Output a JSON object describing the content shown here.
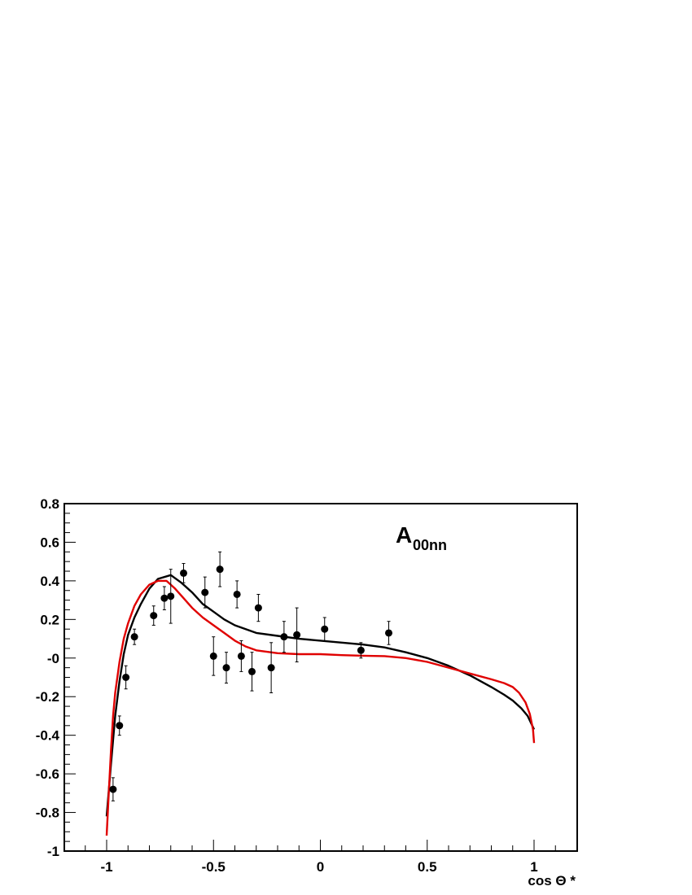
{
  "chart_data": {
    "type": "scatter",
    "title": "",
    "xlabel": "cos Θ *",
    "ylabel": "",
    "xlim": [
      -1.2,
      1.2
    ],
    "ylim": [
      -1,
      0.8
    ],
    "x_ticks": [
      -1,
      -0.5,
      0,
      0.5,
      1
    ],
    "x_tick_labels": [
      "-1",
      "-0.5",
      "0",
      "0.5",
      "1"
    ],
    "y_ticks": [
      -1,
      -0.8,
      -0.6,
      -0.4,
      -0.2,
      0,
      0.2,
      0.4,
      0.6,
      0.8
    ],
    "y_tick_labels": [
      "-1",
      "-0.8",
      "-0.6",
      "-0.4",
      "-0.2",
      "-0",
      "0.2",
      "0.4",
      "0.6",
      "0.8"
    ],
    "annotation": {
      "main": "A",
      "subscript": "00nn"
    },
    "grid": false,
    "series": [
      {
        "kind": "points",
        "color": "#000000",
        "points": [
          {
            "x": -0.97,
            "y": -0.68,
            "err": 0.06
          },
          {
            "x": -0.94,
            "y": -0.35,
            "err": 0.05
          },
          {
            "x": -0.91,
            "y": -0.1,
            "err": 0.06
          },
          {
            "x": -0.87,
            "y": 0.11,
            "err": 0.04
          },
          {
            "x": -0.78,
            "y": 0.22,
            "err": 0.05
          },
          {
            "x": -0.73,
            "y": 0.31,
            "err": 0.06
          },
          {
            "x": -0.7,
            "y": 0.32,
            "err": 0.14
          },
          {
            "x": -0.64,
            "y": 0.44,
            "err": 0.05
          },
          {
            "x": -0.54,
            "y": 0.34,
            "err": 0.08
          },
          {
            "x": -0.5,
            "y": 0.01,
            "err": 0.1
          },
          {
            "x": -0.47,
            "y": 0.46,
            "err": 0.09
          },
          {
            "x": -0.44,
            "y": -0.05,
            "err": 0.08
          },
          {
            "x": -0.39,
            "y": 0.33,
            "err": 0.07
          },
          {
            "x": -0.37,
            "y": 0.01,
            "err": 0.08
          },
          {
            "x": -0.32,
            "y": -0.07,
            "err": 0.1
          },
          {
            "x": -0.29,
            "y": 0.26,
            "err": 0.07
          },
          {
            "x": -0.23,
            "y": -0.05,
            "err": 0.13
          },
          {
            "x": -0.17,
            "y": 0.11,
            "err": 0.08
          },
          {
            "x": -0.11,
            "y": 0.12,
            "err": 0.14
          },
          {
            "x": 0.02,
            "y": 0.15,
            "err": 0.06
          },
          {
            "x": 0.19,
            "y": 0.04,
            "err": 0.04
          },
          {
            "x": 0.32,
            "y": 0.13,
            "err": 0.06
          }
        ]
      },
      {
        "kind": "line",
        "color": "#000000",
        "points": [
          [
            -1.0,
            -0.82
          ],
          [
            -0.98,
            -0.55
          ],
          [
            -0.96,
            -0.3
          ],
          [
            -0.94,
            -0.12
          ],
          [
            -0.92,
            0.02
          ],
          [
            -0.9,
            0.12
          ],
          [
            -0.87,
            0.21
          ],
          [
            -0.84,
            0.28
          ],
          [
            -0.8,
            0.36
          ],
          [
            -0.76,
            0.41
          ],
          [
            -0.7,
            0.43
          ],
          [
            -0.65,
            0.39
          ],
          [
            -0.6,
            0.34
          ],
          [
            -0.55,
            0.28
          ],
          [
            -0.5,
            0.24
          ],
          [
            -0.45,
            0.2
          ],
          [
            -0.4,
            0.17
          ],
          [
            -0.3,
            0.13
          ],
          [
            -0.2,
            0.115
          ],
          [
            -0.1,
            0.1
          ],
          [
            0.0,
            0.09
          ],
          [
            0.1,
            0.08
          ],
          [
            0.2,
            0.07
          ],
          [
            0.3,
            0.055
          ],
          [
            0.4,
            0.03
          ],
          [
            0.5,
            0.0
          ],
          [
            0.6,
            -0.04
          ],
          [
            0.7,
            -0.09
          ],
          [
            0.8,
            -0.15
          ],
          [
            0.86,
            -0.19
          ],
          [
            0.9,
            -0.22
          ],
          [
            0.94,
            -0.26
          ],
          [
            0.97,
            -0.3
          ],
          [
            1.0,
            -0.37
          ]
        ]
      },
      {
        "kind": "line",
        "color": "#e00000",
        "points": [
          [
            -1.0,
            -0.92
          ],
          [
            -0.99,
            -0.7
          ],
          [
            -0.98,
            -0.48
          ],
          [
            -0.97,
            -0.3
          ],
          [
            -0.96,
            -0.18
          ],
          [
            -0.94,
            -0.02
          ],
          [
            -0.92,
            0.1
          ],
          [
            -0.9,
            0.18
          ],
          [
            -0.87,
            0.27
          ],
          [
            -0.84,
            0.33
          ],
          [
            -0.8,
            0.38
          ],
          [
            -0.76,
            0.4
          ],
          [
            -0.72,
            0.4
          ],
          [
            -0.68,
            0.36
          ],
          [
            -0.64,
            0.31
          ],
          [
            -0.6,
            0.26
          ],
          [
            -0.55,
            0.21
          ],
          [
            -0.5,
            0.17
          ],
          [
            -0.45,
            0.13
          ],
          [
            -0.4,
            0.09
          ],
          [
            -0.35,
            0.06
          ],
          [
            -0.3,
            0.04
          ],
          [
            -0.2,
            0.025
          ],
          [
            -0.1,
            0.02
          ],
          [
            0.0,
            0.02
          ],
          [
            0.1,
            0.015
          ],
          [
            0.2,
            0.012
          ],
          [
            0.3,
            0.01
          ],
          [
            0.4,
            0.0
          ],
          [
            0.5,
            -0.02
          ],
          [
            0.6,
            -0.05
          ],
          [
            0.7,
            -0.08
          ],
          [
            0.8,
            -0.11
          ],
          [
            0.86,
            -0.13
          ],
          [
            0.9,
            -0.15
          ],
          [
            0.93,
            -0.18
          ],
          [
            0.96,
            -0.23
          ],
          [
            0.98,
            -0.29
          ],
          [
            0.995,
            -0.37
          ],
          [
            1.0,
            -0.44
          ]
        ]
      }
    ]
  }
}
